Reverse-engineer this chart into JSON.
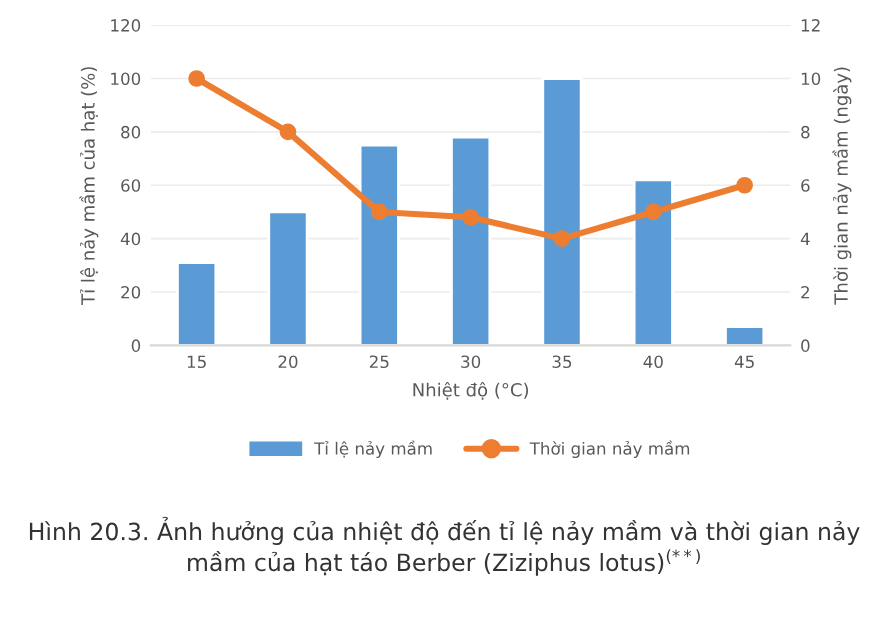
{
  "chart_data": {
    "type": "bar",
    "categories": [
      "15",
      "20",
      "25",
      "30",
      "35",
      "40",
      "45"
    ],
    "xlabel": "Nhiệt độ (°C)",
    "ylabel": "Tỉ lệ nảy mầm của hạt (%)",
    "y2label": "Thời gian nảy mầm (ngày)",
    "series": [
      {
        "name": "Tỉ lệ nảy mầm",
        "color": "#5b9bd5",
        "values": [
          31,
          50,
          75,
          78,
          100,
          62,
          7
        ]
      },
      {
        "name": "Thời gian nảy mầm",
        "type": "line",
        "axis": "y2",
        "color": "#ed7d31",
        "marker": "circle",
        "values": [
          10,
          8,
          5,
          4.8,
          4,
          5,
          6
        ]
      }
    ],
    "ylim": [
      0,
      120
    ],
    "yticks": [
      0,
      20,
      40,
      60,
      80,
      100,
      120
    ],
    "y2lim": [
      0,
      12
    ],
    "y2ticks": [
      0,
      2,
      4,
      6,
      8,
      10,
      12
    ],
    "grid": "y",
    "legend": "bottom",
    "annotations": [
      "Hình 20.3. Ảnh hưởng của nhiệt độ đến tỉ lệ nảy mầm và thời gian nảy mầm của hạt táo Berber (Ziziphus lotus)$^{(**)}$"
    ]
  }
}
